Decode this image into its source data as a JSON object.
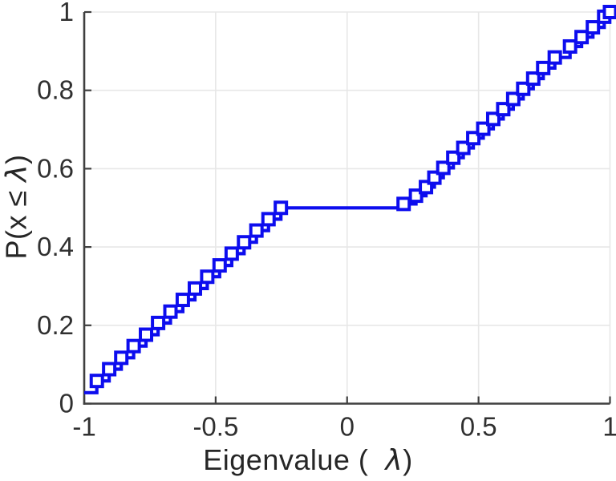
{
  "figure": {
    "background": "#ffffff",
    "xlabel_prefix": "Eigenvalue (  ",
    "xlabel_lambda": "λ",
    "xlabel_suffix": ")",
    "ylabel_prefix": "P(x ≤ ",
    "ylabel_lambda": "λ",
    "ylabel_suffix": ")"
  },
  "chart_data": {
    "type": "line",
    "subtype": "stairs-ecdf",
    "title": "",
    "xlabel": "Eigenvalue ( λ)",
    "ylabel": "P(x ≤ λ)",
    "xlim": [
      -1,
      1
    ],
    "ylim": [
      0,
      1
    ],
    "x_ticks": [
      -1,
      -0.5,
      0,
      0.5,
      1
    ],
    "x_tick_labels": [
      "-1",
      "-0.5",
      "0",
      "0.5",
      "1"
    ],
    "y_ticks": [
      0,
      0.2,
      0.4,
      0.6,
      0.8,
      1
    ],
    "y_tick_labels": [
      "0",
      "0.2",
      "0.4",
      "0.6",
      "0.8",
      "1"
    ],
    "grid": true,
    "legend": null,
    "line_color": "#0d0dee",
    "marker": "square",
    "marker_fill": "#ffffff",
    "axis_color": "#3f3f3f",
    "grid_color": "#e7e7e7",
    "tick_label_color": "#303030",
    "points": [
      [
        -1.0,
        0.028
      ],
      [
        -0.952,
        0.058
      ],
      [
        -0.905,
        0.088
      ],
      [
        -0.859,
        0.117
      ],
      [
        -0.812,
        0.147
      ],
      [
        -0.765,
        0.176
      ],
      [
        -0.719,
        0.206
      ],
      [
        -0.672,
        0.235
      ],
      [
        -0.625,
        0.265
      ],
      [
        -0.579,
        0.294
      ],
      [
        -0.532,
        0.324
      ],
      [
        -0.485,
        0.353
      ],
      [
        -0.439,
        0.383
      ],
      [
        -0.392,
        0.412
      ],
      [
        -0.345,
        0.442
      ],
      [
        -0.299,
        0.471
      ],
      [
        -0.252,
        0.5
      ],
      [
        0.215,
        0.51
      ],
      [
        0.262,
        0.531
      ],
      [
        0.3,
        0.553
      ],
      [
        0.332,
        0.577
      ],
      [
        0.366,
        0.602
      ],
      [
        0.404,
        0.628
      ],
      [
        0.442,
        0.653
      ],
      [
        0.48,
        0.678
      ],
      [
        0.518,
        0.702
      ],
      [
        0.556,
        0.727
      ],
      [
        0.594,
        0.752
      ],
      [
        0.632,
        0.778
      ],
      [
        0.67,
        0.804
      ],
      [
        0.708,
        0.83
      ],
      [
        0.746,
        0.857
      ],
      [
        0.79,
        0.884
      ],
      [
        0.848,
        0.912
      ],
      [
        0.892,
        0.936
      ],
      [
        0.935,
        0.961
      ],
      [
        0.978,
        0.988
      ],
      [
        1.0,
        1.0
      ]
    ],
    "marker_on_first_point": false
  }
}
